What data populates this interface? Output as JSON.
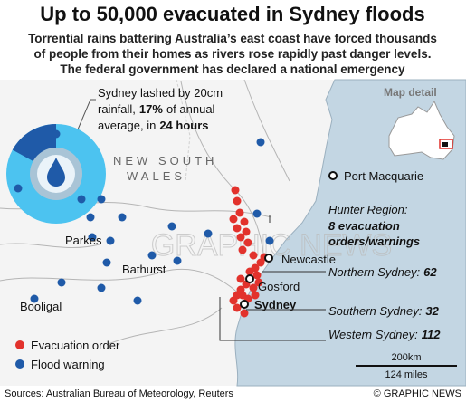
{
  "header": {
    "title": "Up to 50,000 evacuated in Sydney floods",
    "subtitle_lines": [
      "Torrential rains battering Australia’s east coast have forced thousands",
      "of people from their homes as rivers rose rapidly past danger levels.",
      "The federal government has declared a national emergency"
    ]
  },
  "callout": {
    "line1": "Sydney lashed by 20cm",
    "line2_pre": "rainfall,",
    "line2_post": "of annual",
    "line3_pre": "average, in",
    "line3_bold": "24 hours",
    "rainfall_share": {
      "value": 17,
      "label": "17%"
    }
  },
  "inset": {
    "title": "Map detail"
  },
  "map": {
    "state_lines": [
      "NEW SOUTH",
      "WALES"
    ],
    "towns": [
      "Port Macquarie",
      "Newcastle",
      "Gosford",
      "Sydney",
      "Parkes",
      "Bathurst",
      "Booligal"
    ]
  },
  "annotations": {
    "hunter": {
      "name": "Hunter Region:",
      "detail_lines": [
        "8 evacuation",
        "orders/warnings"
      ]
    },
    "regions": [
      {
        "name": "Northern Sydney:",
        "count": 62
      },
      {
        "name": "Southern Sydney:",
        "count": 32
      },
      {
        "name": "Western Sydney:",
        "count": 112
      }
    ]
  },
  "legend": [
    "Evacuation order",
    "Flood warning"
  ],
  "scale": [
    "200km",
    "124 miles"
  ],
  "watermark": "GRAPHIC NEWS",
  "footer": {
    "source": "Sources: Australian Bureau of Meteorology, Reuters",
    "credit": "© GRAPHIC NEWS"
  }
}
